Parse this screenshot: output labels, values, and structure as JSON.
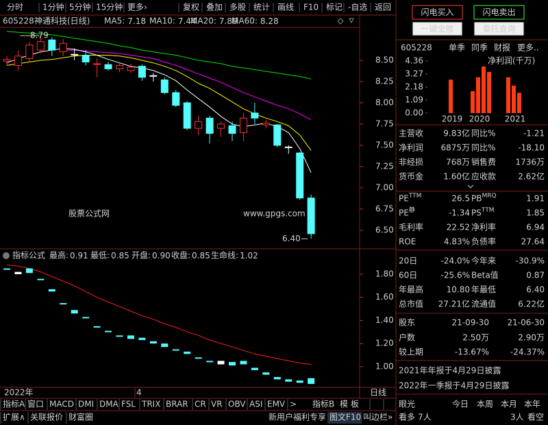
{
  "toolbar": {
    "left": [
      "分时",
      "1分钟",
      "5分钟",
      "15分钟",
      "更多›"
    ],
    "right": [
      "复权",
      "叠加",
      "多股",
      "统计",
      "画线",
      "F10",
      "标记",
      "-自选",
      "返回"
    ]
  },
  "trade_buttons": {
    "buy": "闪电买入",
    "sell": "闪电卖出",
    "cancel_all": "一键全撤",
    "query": "委托查询"
  },
  "chart_header": {
    "code": "605228",
    "name": "神通科技(日线)",
    "ma": [
      {
        "label": "MA5:",
        "value": "7.18"
      },
      {
        "label": "MA10:",
        "value": "7.44"
      },
      {
        "label": "MA20:",
        "value": "7.80"
      },
      {
        "label": "MA60:",
        "value": "8.28"
      }
    ]
  },
  "price_chart": {
    "type": "candlestick",
    "ylim": [
      6.29,
      8.887
    ],
    "yticks": [
      {
        "value": 8.5,
        "label": "8.50"
      },
      {
        "value": 8.25,
        "label": "8.25"
      },
      {
        "value": 8.0,
        "label": "8.00"
      },
      {
        "value": 7.75,
        "label": "7.75"
      },
      {
        "value": 7.5,
        "label": "7.50"
      },
      {
        "value": 7.25,
        "label": "7.25"
      },
      {
        "value": 7.0,
        "label": "7.00"
      },
      {
        "value": 6.75,
        "label": "6.75"
      },
      {
        "value": 6.5,
        "label": "6.50"
      }
    ],
    "candles": {
      "open": [
        8.49,
        8.44,
        8.52,
        8.62,
        8.74,
        8.6,
        8.57,
        8.56,
        8.45,
        8.45,
        8.4,
        8.38,
        8.43,
        8.32,
        8.27,
        8.12,
        8.0,
        7.7,
        7.82,
        7.7,
        7.73,
        7.65,
        7.88,
        7.74,
        7.74,
        7.48,
        7.41,
        6.88
      ],
      "high": [
        8.55,
        8.62,
        8.72,
        8.79,
        8.77,
        8.75,
        8.64,
        8.62,
        8.52,
        8.48,
        8.46,
        8.46,
        8.45,
        8.35,
        8.3,
        8.15,
        8.02,
        7.85,
        7.85,
        7.78,
        7.78,
        7.88,
        8.0,
        7.8,
        7.75,
        7.5,
        7.42,
        6.92
      ],
      "low": [
        8.44,
        8.38,
        8.48,
        8.58,
        8.55,
        8.55,
        8.5,
        8.44,
        8.3,
        8.38,
        8.36,
        8.35,
        8.26,
        8.25,
        8.1,
        7.95,
        7.68,
        7.62,
        7.52,
        7.6,
        7.55,
        7.55,
        7.75,
        7.7,
        7.48,
        7.4,
        6.86,
        6.4
      ],
      "close": [
        8.51,
        8.55,
        8.68,
        8.72,
        8.62,
        8.7,
        8.57,
        8.48,
        8.46,
        8.4,
        8.44,
        8.42,
        8.3,
        8.32,
        8.12,
        7.97,
        7.7,
        7.78,
        7.64,
        7.75,
        7.64,
        7.82,
        7.82,
        7.76,
        7.5,
        7.48,
        6.88,
        6.46
      ]
    },
    "ma": [
      {
        "name": "MA5",
        "color": "#ffffff",
        "values": [
          8.47,
          8.52,
          8.56,
          8.6,
          8.62,
          8.64,
          8.63,
          8.6,
          8.56,
          8.51,
          8.47,
          8.43,
          8.41,
          8.38,
          8.33,
          8.26,
          8.15,
          8.05,
          7.95,
          7.84,
          7.75,
          7.72,
          7.74,
          7.76,
          7.72,
          7.65,
          7.46,
          7.18
        ]
      },
      {
        "name": "MA10",
        "color": "#ffff00",
        "values": [
          8.44,
          8.46,
          8.48,
          8.5,
          8.51,
          8.53,
          8.55,
          8.56,
          8.56,
          8.56,
          8.55,
          8.53,
          8.5,
          8.47,
          8.43,
          8.38,
          8.31,
          8.23,
          8.17,
          8.09,
          8.01,
          7.93,
          7.87,
          7.82,
          7.78,
          7.73,
          7.62,
          7.44
        ]
      },
      {
        "name": "MA20",
        "color": "#ff00ff",
        "values": [
          null,
          null,
          null,
          null,
          null,
          8.62,
          8.62,
          8.61,
          8.6,
          8.59,
          8.58,
          8.56,
          8.54,
          8.52,
          8.48,
          8.44,
          8.39,
          8.34,
          8.29,
          8.24,
          8.18,
          8.12,
          8.07,
          8.02,
          7.97,
          7.93,
          7.87,
          7.8
        ]
      },
      {
        "name": "MA60",
        "color": "#00e600",
        "values": [
          8.84,
          8.83,
          8.82,
          8.81,
          8.8,
          8.78,
          8.76,
          8.74,
          8.72,
          8.7,
          8.67,
          8.65,
          8.62,
          8.6,
          8.58,
          8.56,
          8.53,
          8.5,
          8.48,
          8.46,
          8.43,
          8.41,
          8.39,
          8.37,
          8.35,
          8.33,
          8.31,
          8.28
        ]
      }
    ],
    "high_label": 8.79,
    "low_label": {
      "value": 6.4,
      "label": "6.40"
    }
  },
  "watermark": {
    "cn": "股票公式网",
    "url": "www.gpgs.com"
  },
  "indicator": {
    "title": "指标公式",
    "fields": [
      {
        "label": "最高:",
        "value": "0.91",
        "color": "#c8c832"
      },
      {
        "label": "最低:",
        "value": "0.85",
        "color": "#3c50ff"
      },
      {
        "label": "开盘:",
        "value": "0.90",
        "color": "#ff3ca0"
      },
      {
        "label": "收盘:",
        "value": "0.85",
        "color": "#50e6e6"
      },
      {
        "label": "生命线:",
        "value": "1.02",
        "color": "#ff3232"
      }
    ],
    "ylim": [
      0.833,
      1.978
    ],
    "yticks": [
      {
        "value": 1.8,
        "label": "1.80"
      },
      {
        "value": 1.6,
        "label": "1.60"
      },
      {
        "value": 1.4,
        "label": "1.40"
      },
      {
        "value": 1.2,
        "label": "1.20"
      },
      {
        "value": 1.0,
        "label": "1.00"
      }
    ],
    "open": [
      1.85,
      1.8,
      1.85,
      1.76,
      1.67,
      1.55,
      1.49,
      1.43,
      1.35,
      1.31,
      1.27,
      1.27,
      1.25,
      1.22,
      1.2,
      1.15,
      1.13,
      1.08,
      1.05,
      1.02,
      1.04,
      1.05,
      0.99,
      0.95,
      0.91,
      0.89,
      0.88,
      0.9
    ],
    "close": [
      1.84,
      1.82,
      1.81,
      1.75,
      1.65,
      1.54,
      1.46,
      1.42,
      1.34,
      1.3,
      1.26,
      1.24,
      1.23,
      1.2,
      1.17,
      1.14,
      1.11,
      1.07,
      1.04,
      1.05,
      1.01,
      1.02,
      0.97,
      0.93,
      0.89,
      0.87,
      0.86,
      0.85
    ],
    "lifeline": {
      "color": "#ff2020",
      "values": [
        1.88,
        1.87,
        1.85,
        1.82,
        1.78,
        1.74,
        1.7,
        1.65,
        1.6,
        1.56,
        1.52,
        1.48,
        1.44,
        1.41,
        1.37,
        1.34,
        1.3,
        1.27,
        1.23,
        1.2,
        1.17,
        1.14,
        1.11,
        1.09,
        1.07,
        1.05,
        1.03,
        1.02
      ]
    }
  },
  "x_axis": {
    "year": "2022年",
    "month": "4",
    "period": "日线"
  },
  "tabs": {
    "left": [
      "指标A",
      "窗口",
      "MACD",
      "DMI",
      "DMA",
      "FSL",
      "TRIX",
      "BRAR",
      "CR",
      "VR",
      "OBV",
      "ASI",
      "EMV",
      ">"
    ],
    "right": [
      "指标B",
      "模",
      "板"
    ]
  },
  "bottom_bar": {
    "left": [
      "扩展∧",
      "关联报价",
      "财富圈"
    ],
    "right": [
      "新用户福利专享",
      "图文F10",
      "叫边栏»"
    ]
  },
  "finance": {
    "code": "605228",
    "tabs": [
      "单季",
      "同季",
      "财报",
      "更多.."
    ],
    "mini_chart": {
      "title": "净利润(千万)",
      "yticks": [
        4.36,
        3.27,
        2.18,
        1.09,
        {
          "value": 0,
          "label": "0.00"
        }
      ],
      "ylim": [
        0,
        4.36
      ],
      "color": "#ff3c14",
      "groups": [
        {
          "year": "2019",
          "values": [
            2.8
          ]
        },
        {
          "year": "2020",
          "values": [
            1.84,
            3.0,
            3.9,
            3.45
          ]
        },
        {
          "year": "2021",
          "values": [
            3.0,
            2.3,
            1.7
          ]
        }
      ]
    },
    "rows": [
      [
        "主营收",
        "9.83亿",
        "同比%",
        "-1.21"
      ],
      [
        "净利润",
        "6875万",
        "同比%",
        "-18.10"
      ],
      [
        "非经损",
        "768万",
        "销售费",
        "1736万"
      ],
      [
        "货币金",
        "1.60亿",
        "应收款",
        "2.62亿"
      ]
    ],
    "ratio_rows": [
      [
        {
          "text": "PE",
          "sup": "TTM"
        },
        "26.5",
        {
          "text": "PB",
          "sup": "MRQ"
        },
        "1.91"
      ],
      [
        {
          "text": "PE",
          "sup": "静"
        },
        "-1.34",
        {
          "text": "PS",
          "sup": "TTM"
        },
        "1.85"
      ],
      [
        "毛利率",
        "22.52",
        "净利率",
        "6.94"
      ],
      [
        "ROE",
        "4.83%",
        "负债率",
        "27.64"
      ]
    ],
    "market_rows": [
      [
        "20日",
        "-24.0%",
        "今年来",
        "-30.9%"
      ],
      [
        "60日",
        "-25.6%",
        "Beta值",
        "0.87"
      ],
      [
        "年最高",
        "10.80",
        "年最低",
        "6.40"
      ],
      [
        "总市值",
        "27.21亿",
        "流通值",
        "6.22亿"
      ]
    ],
    "holders": {
      "header": [
        "股东",
        "21-09-30",
        "21-06-30"
      ],
      "rows": [
        [
          "户数",
          "2.50万",
          "2.90万"
        ],
        [
          "较上期",
          "-13.67%",
          "-24.37%"
        ]
      ]
    },
    "notes": [
      "2021年年报于4月29日披露",
      "2022年一季报于4月29日披露"
    ],
    "sentiment": {
      "tabs": [
        "眼光",
        "今日",
        "本周",
        "本月",
        "本年"
      ],
      "bull": "看多",
      "bull_count": "7人",
      "bear_count": "3人",
      "bear": "看空"
    }
  }
}
